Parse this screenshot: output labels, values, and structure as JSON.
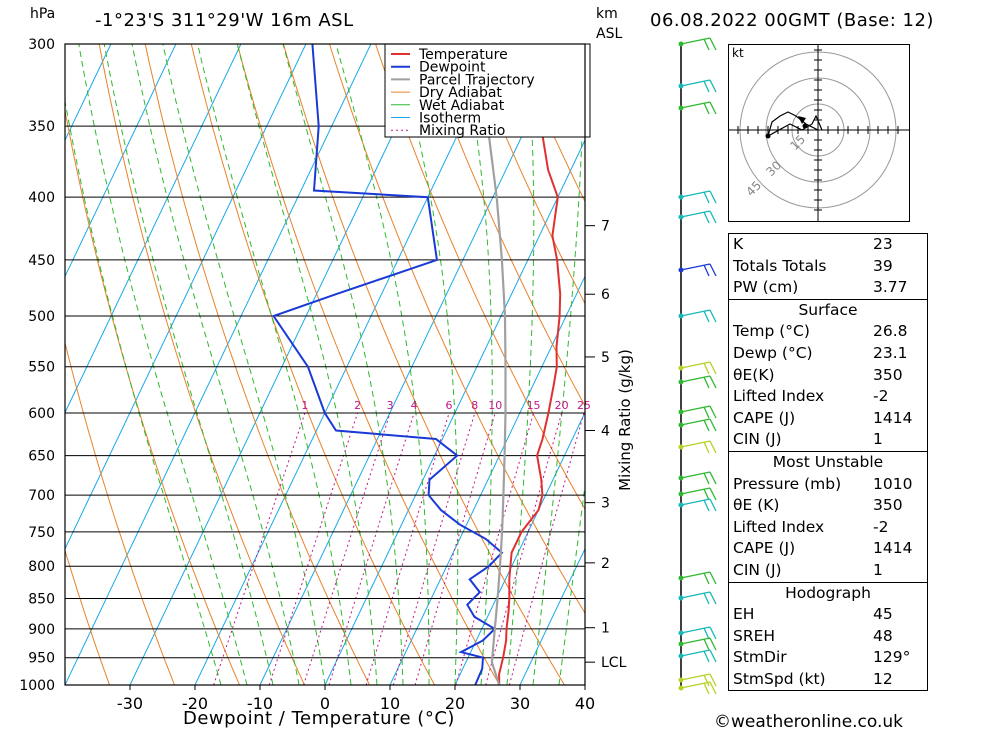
{
  "title": "-1°23'S 311°29'W 16m ASL",
  "datetime": "06.08.2022 00GMT (Base: 12)",
  "pressure_unit": "hPa",
  "height_unit_1": "km",
  "height_unit_2": "ASL",
  "xlabel": "Dewpoint / Temperature (°C)",
  "mixing_ratio_axis_label": "Mixing Ratio (g/kg)",
  "credit": "©weatheronline.co.uk",
  "legend": [
    "Temperature",
    "Dewpoint",
    "Parcel Trajectory",
    "Dry Adiabat",
    "Wet Adiabat",
    "Isotherm",
    "Mixing Ratio"
  ],
  "colors": {
    "temperature": "#e03030",
    "dewpoint": "#1a3ad6",
    "parcel": "#a0a0a0",
    "dry_adiabat": "#e8822a",
    "wet_adiabat": "#2fb82f",
    "isotherm": "#1aa8e8",
    "mixing_ratio": "#c0188a"
  },
  "hodograph": {
    "unit": "kt",
    "ring_labels": [
      "15",
      "30",
      "45"
    ]
  },
  "indices": {
    "k": {
      "label": "K",
      "value": "23"
    },
    "tt": {
      "label": "Totals Totals",
      "value": "39"
    },
    "pw": {
      "label": "PW (cm)",
      "value": "3.77"
    },
    "surface_title": "Surface",
    "s_temp": {
      "label": "Temp (°C)",
      "value": "26.8"
    },
    "s_dewp": {
      "label": "Dewp (°C)",
      "value": "23.1"
    },
    "s_theta": {
      "label": "θE(K)",
      "value": "350"
    },
    "s_li": {
      "label": "Lifted Index",
      "value": "-2"
    },
    "s_cape": {
      "label": "CAPE (J)",
      "value": "1414"
    },
    "s_cin": {
      "label": "CIN (J)",
      "value": "1"
    },
    "mu_title": "Most Unstable",
    "mu_pres": {
      "label": "Pressure (mb)",
      "value": "1010"
    },
    "mu_theta": {
      "label": "θE (K)",
      "value": "350"
    },
    "mu_li": {
      "label": "Lifted Index",
      "value": "-2"
    },
    "mu_cape": {
      "label": "CAPE (J)",
      "value": "1414"
    },
    "mu_cin": {
      "label": "CIN (J)",
      "value": "1"
    },
    "hodo_title": "Hodograph",
    "eh": {
      "label": "EH",
      "value": "45"
    },
    "sreh": {
      "label": "SREH",
      "value": "48"
    },
    "stmdir": {
      "label": "StmDir",
      "value": "129°"
    },
    "stmspd": {
      "label": "StmSpd (kt)",
      "value": "12"
    }
  },
  "chart_data": {
    "type": "line",
    "skew_deg_per_log10_hpa": 90,
    "xlim": [
      -40,
      40
    ],
    "ylim_hpa": [
      1000,
      300
    ],
    "x_ticks": [
      -30,
      -20,
      -10,
      0,
      10,
      20,
      30,
      40
    ],
    "y_ticks": [
      300,
      350,
      400,
      450,
      500,
      550,
      600,
      650,
      700,
      750,
      800,
      850,
      900,
      950,
      1000
    ],
    "km_ticks": [
      {
        "label": "7",
        "p": 422
      },
      {
        "label": "6",
        "p": 480
      },
      {
        "label": "5",
        "p": 540
      },
      {
        "label": "4",
        "p": 620
      },
      {
        "label": "3",
        "p": 710
      },
      {
        "label": "2",
        "p": 795
      },
      {
        "label": "1",
        "p": 898
      },
      {
        "label": "LCL",
        "p": 958
      }
    ],
    "mixing_ratio_labels": [
      "1",
      "2",
      "3",
      "4",
      "6",
      "8",
      "10",
      "15",
      "20",
      "25"
    ],
    "series": [
      {
        "name": "Temperature",
        "points": [
          [
            1000,
            26.8
          ],
          [
            980,
            26.0
          ],
          [
            950,
            25.4
          ],
          [
            920,
            24.6
          ],
          [
            900,
            23.8
          ],
          [
            870,
            22.8
          ],
          [
            850,
            22.0
          ],
          [
            820,
            20.6
          ],
          [
            800,
            19.8
          ],
          [
            780,
            19.0
          ],
          [
            750,
            19.0
          ],
          [
            720,
            20.0
          ],
          [
            700,
            19.5
          ],
          [
            680,
            18.2
          ],
          [
            650,
            15.8
          ],
          [
            630,
            15.4
          ],
          [
            600,
            14.4
          ],
          [
            570,
            13.2
          ],
          [
            550,
            12.3
          ],
          [
            530,
            10.8
          ],
          [
            500,
            9.0
          ],
          [
            480,
            7.5
          ],
          [
            450,
            4.5
          ],
          [
            430,
            2.0
          ],
          [
            400,
            0.0
          ],
          [
            380,
            -3.5
          ],
          [
            350,
            -7.8
          ],
          [
            300,
            -14.0
          ]
        ]
      },
      {
        "name": "Dewpoint",
        "points": [
          [
            1000,
            23.1
          ],
          [
            970,
            23.0
          ],
          [
            950,
            22.3
          ],
          [
            940,
            18.5
          ],
          [
            920,
            21.0
          ],
          [
            900,
            22.0
          ],
          [
            880,
            18.0
          ],
          [
            860,
            16.0
          ],
          [
            840,
            17.0
          ],
          [
            820,
            14.5
          ],
          [
            800,
            16.5
          ],
          [
            780,
            17.5
          ],
          [
            760,
            14.0
          ],
          [
            740,
            9.0
          ],
          [
            720,
            5.0
          ],
          [
            700,
            2.0
          ],
          [
            680,
            1.0
          ],
          [
            650,
            3.5
          ],
          [
            630,
            -1.0
          ],
          [
            620,
            -17.0
          ],
          [
            600,
            -20.0
          ],
          [
            550,
            -26.0
          ],
          [
            500,
            -35.0
          ],
          [
            480,
            -27.0
          ],
          [
            450,
            -14.0
          ],
          [
            400,
            -20.0
          ],
          [
            395,
            -38.0
          ],
          [
            350,
            -42.0
          ],
          [
            300,
            -49.0
          ]
        ]
      },
      {
        "name": "Parcel Trajectory",
        "points": [
          [
            1000,
            26.8
          ],
          [
            958,
            24.0
          ],
          [
            900,
            22.0
          ],
          [
            850,
            20.2
          ],
          [
            800,
            18.2
          ],
          [
            750,
            16.0
          ],
          [
            700,
            13.5
          ],
          [
            650,
            10.8
          ],
          [
            600,
            7.8
          ],
          [
            550,
            4.4
          ],
          [
            500,
            0.6
          ],
          [
            450,
            -4.0
          ],
          [
            400,
            -9.4
          ],
          [
            350,
            -16.0
          ]
        ]
      }
    ]
  }
}
